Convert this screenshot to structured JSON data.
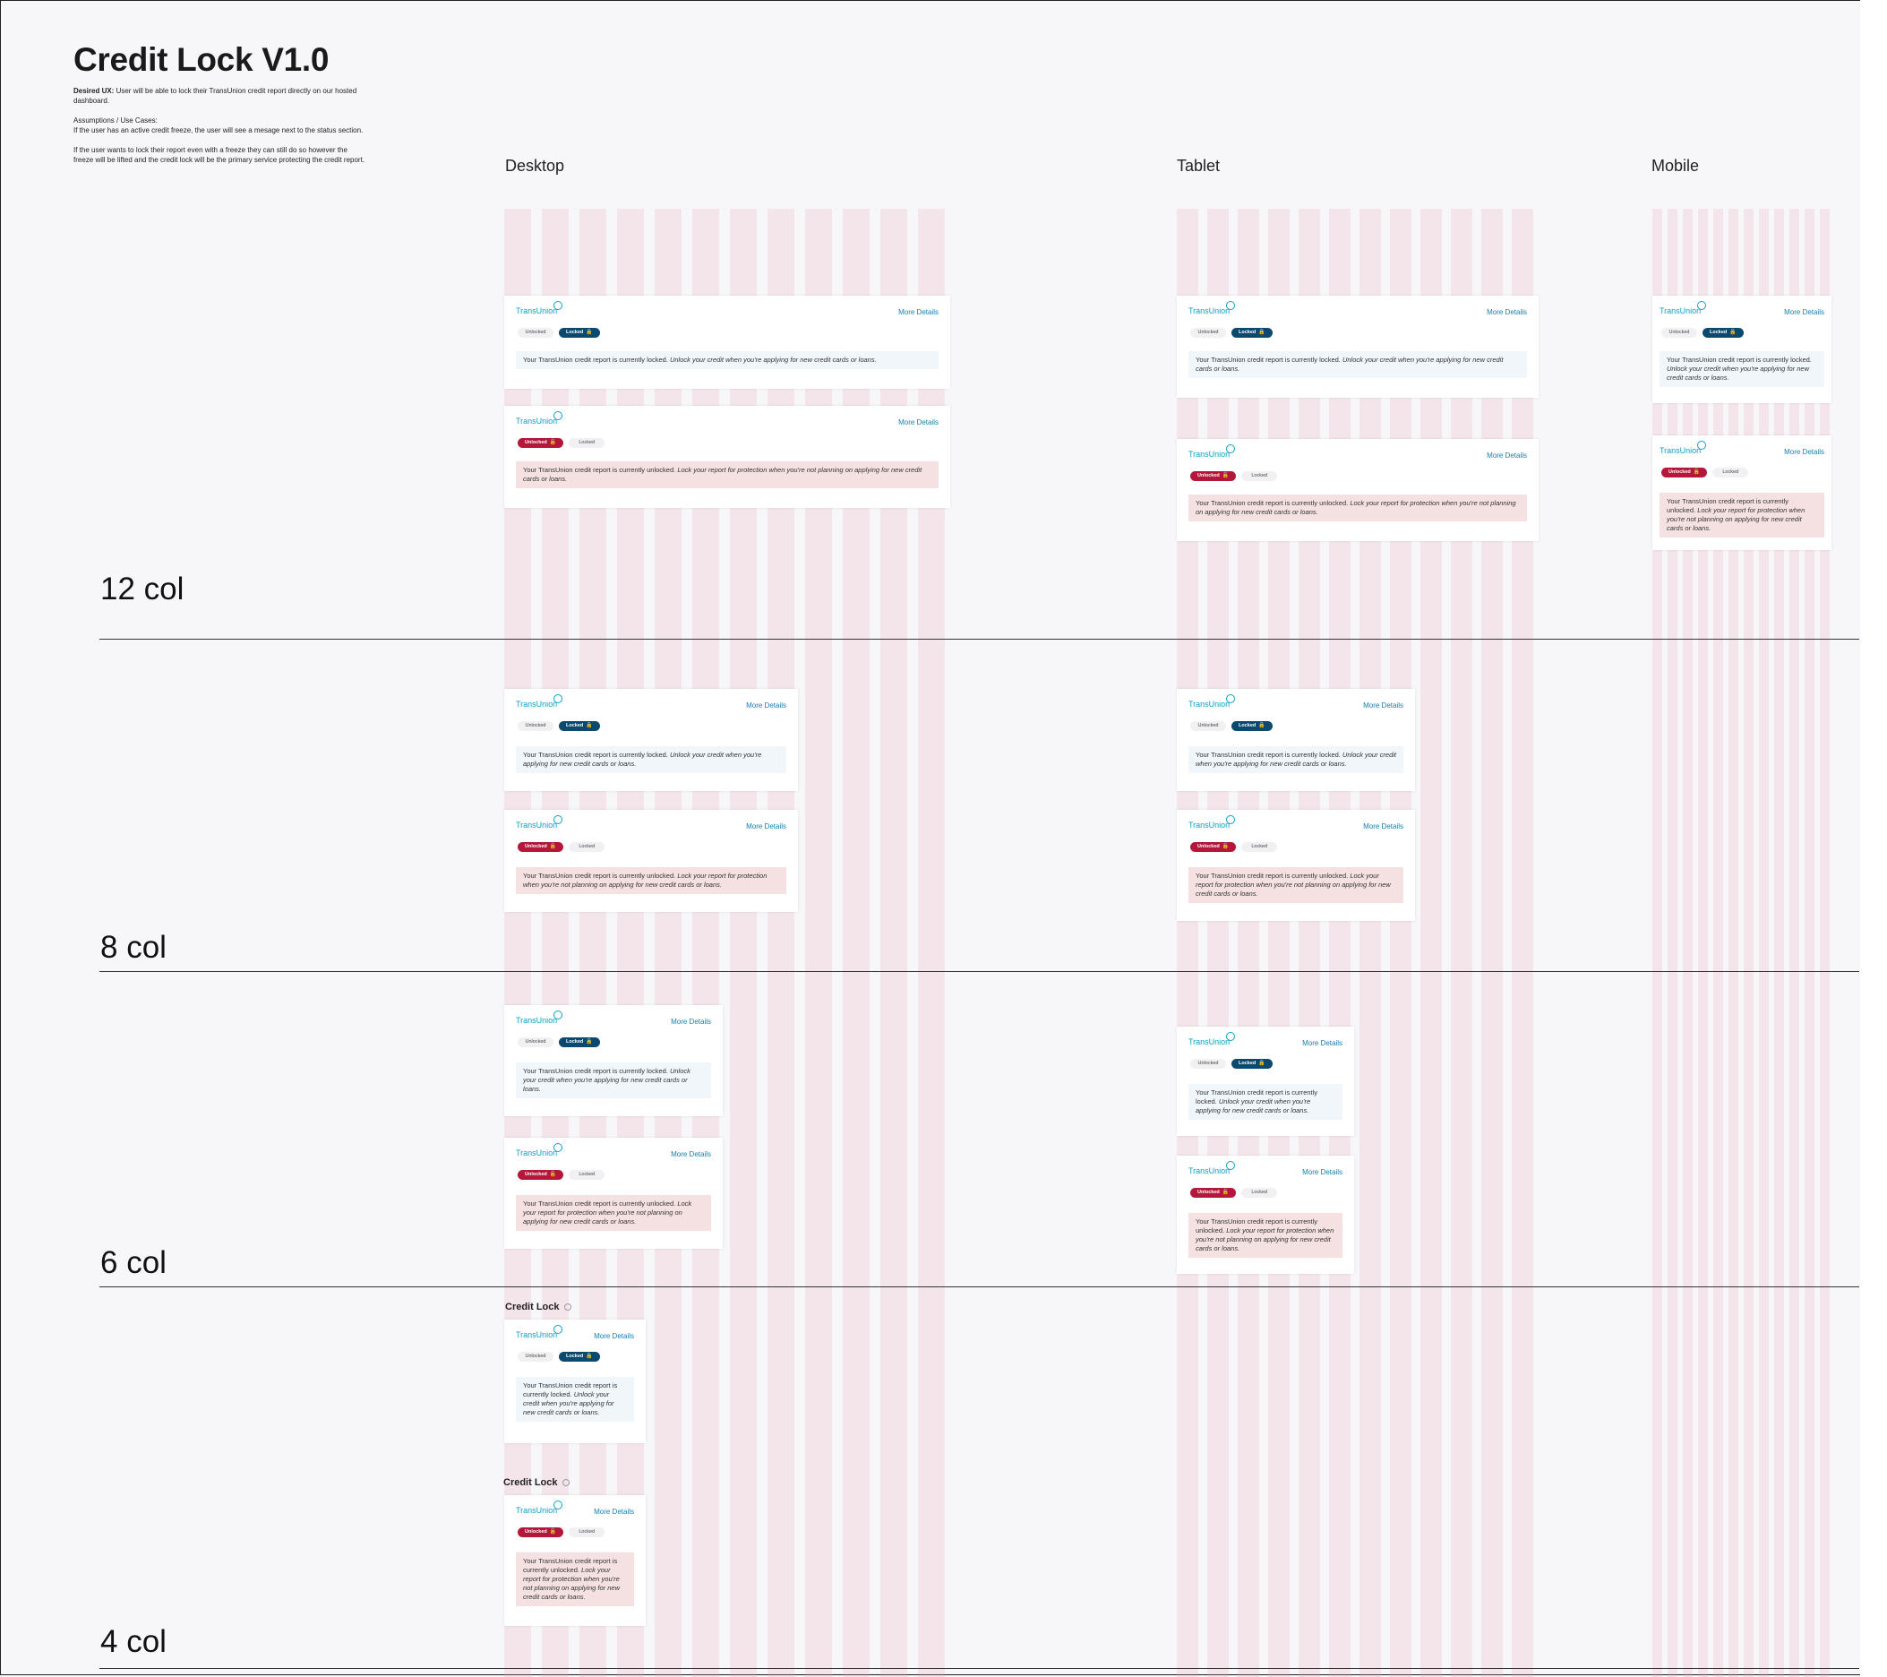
{
  "page": {
    "title": "Credit Lock V1.0",
    "desired_ux_label": "Desired UX:",
    "desired_ux_text": " User will be able to lock their TransUnion credit report directly on our hosted dashboard.",
    "assumptions_heading": "Assumptions / Use Cases:",
    "assumption_1": "If the user has an active credit freeze, the user will see a mesage next to the status section.",
    "assumption_2": "If the user wants to lock their report even with a freeze they can still do so however the freeze will be lifted and the credit lock will be the primary service protecting the credit report."
  },
  "columns": {
    "desktop": "Desktop",
    "tablet": "Tablet",
    "mobile": "Mobile"
  },
  "rows": {
    "r12": "12 col",
    "r8": "8 col",
    "r6": "6 col",
    "r4": "4 col"
  },
  "card": {
    "brand": "TransUnion",
    "more_details": "More Details",
    "unlocked_label": "Unlocked",
    "locked_label": "Locked",
    "lock_glyph": "🔒",
    "unlock_glyph": "🔓",
    "locked_msg_plain": "Your TransUnion credit report is currently locked. ",
    "locked_msg_italic": "Unlock your credit when you're applying for new credit cards or loans.",
    "unlocked_msg_plain": "Your TransUnion credit report is currently unlocked. ",
    "unlocked_msg_italic": "Lock your report for protection when you're not planning on applying for new credit cards or loans."
  },
  "credit_lock_heading": "Credit Lock",
  "colors": {
    "brand": "#0aa2c4",
    "locked": "#0b4a6e",
    "unlocked": "#b5173a",
    "grid": "#f3dfe3"
  }
}
